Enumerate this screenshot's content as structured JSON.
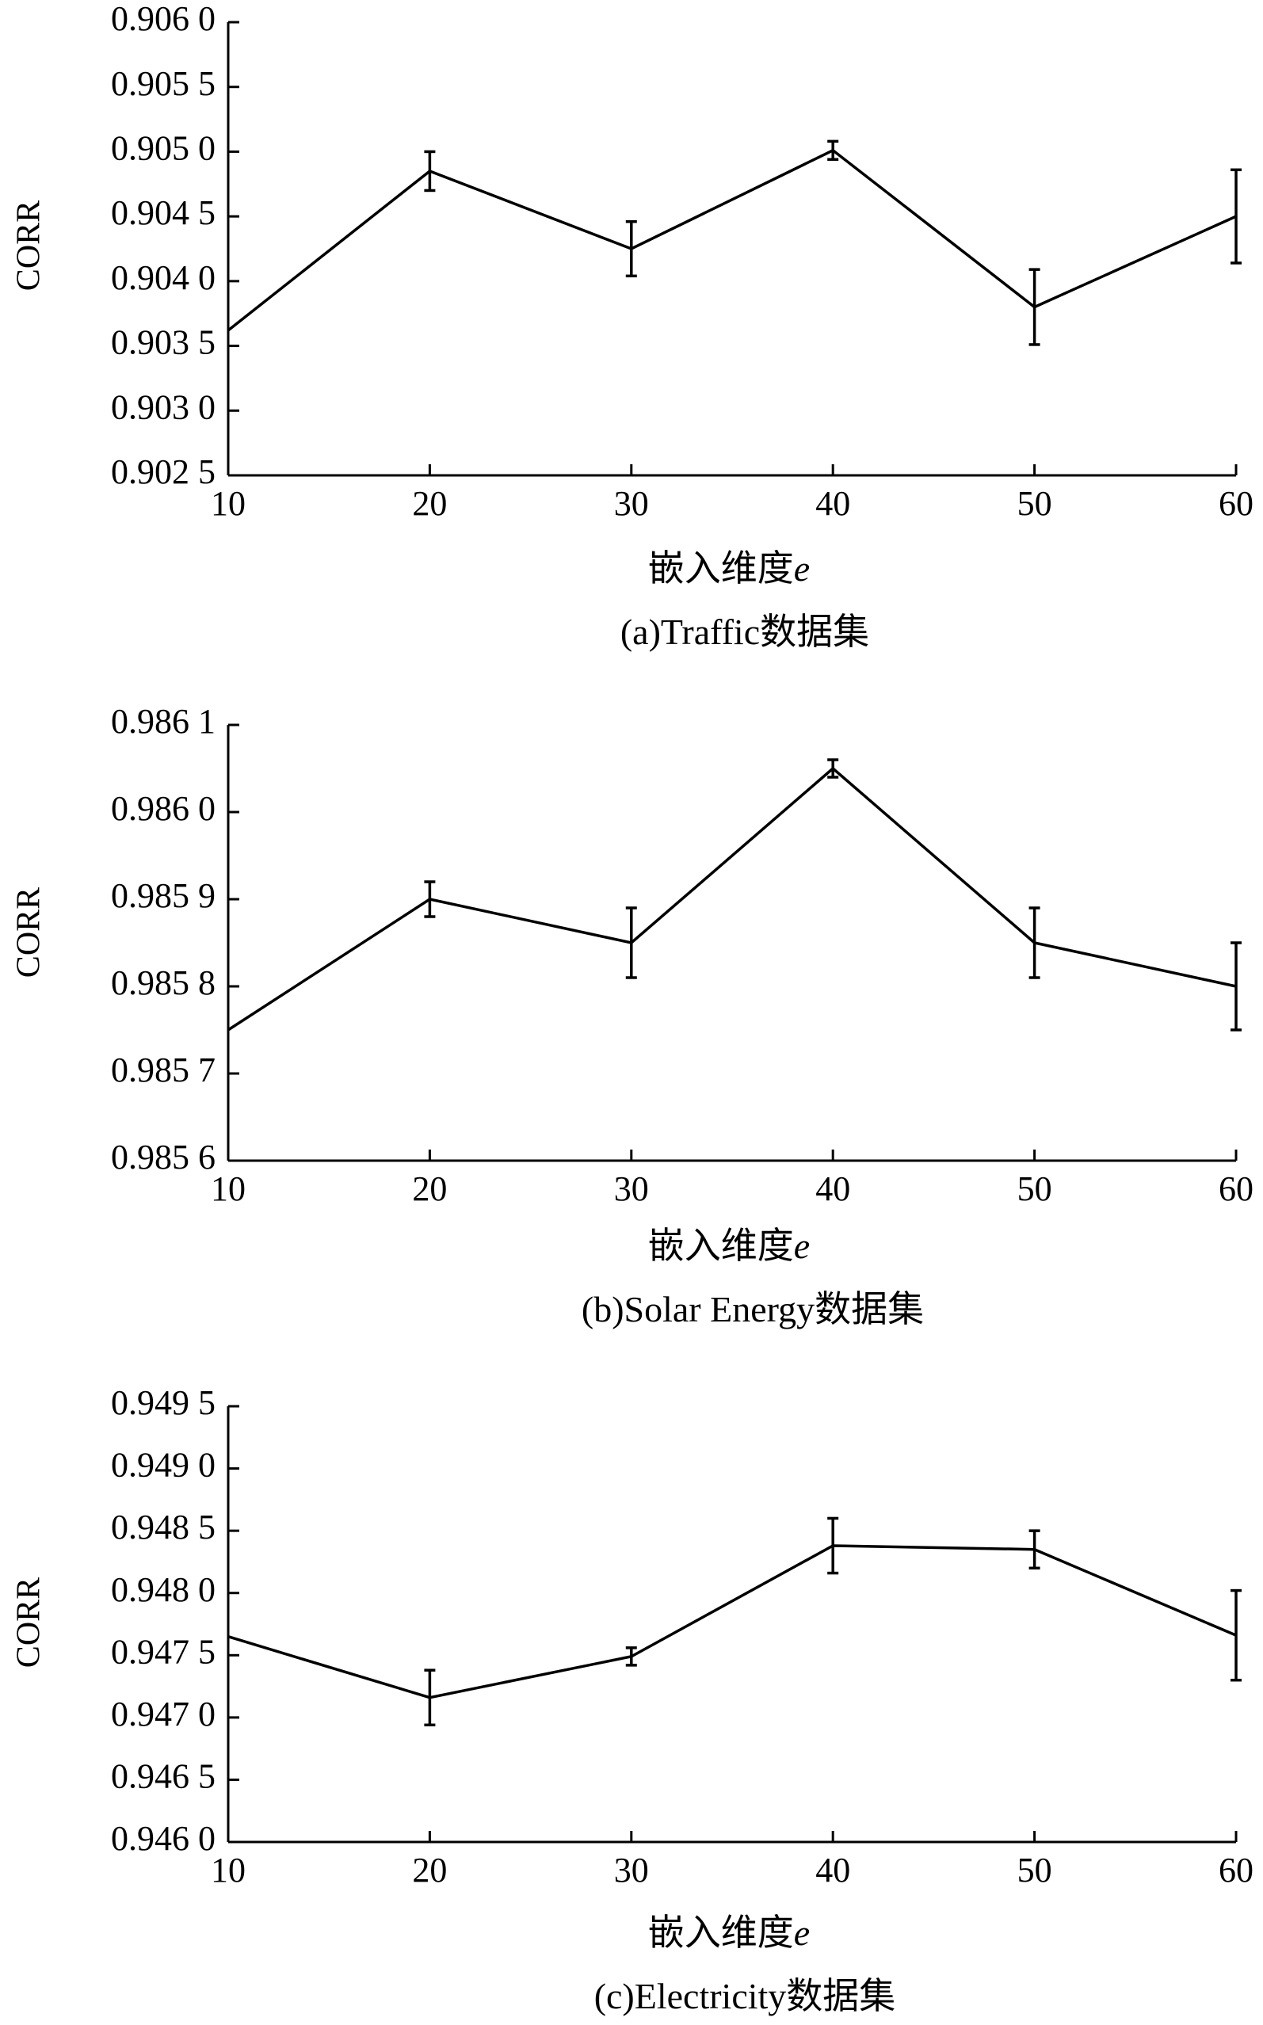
{
  "chart_data": [
    {
      "type": "line",
      "title": "",
      "caption": "(a)Traffic数据集",
      "xlabel": "嵌入维度",
      "xlabel_var": "e",
      "ylabel": "CORR",
      "x": [
        10,
        20,
        30,
        40,
        50,
        60
      ],
      "xticks": [
        "10",
        "20",
        "30",
        "40",
        "50",
        "60"
      ],
      "ylim": [
        0.9025,
        0.906
      ],
      "yticks": [
        0.9025,
        0.903,
        0.9035,
        0.904,
        0.9045,
        0.905,
        0.9055,
        0.906
      ],
      "ytick_labels": [
        "0.902 5",
        "0.903 0",
        "0.903 5",
        "0.904 0",
        "0.904 5",
        "0.905 0",
        "0.905 5",
        "0.906 0"
      ],
      "series": [
        {
          "values": [
            0.90362,
            0.90485,
            0.90425,
            0.90501,
            0.9038,
            0.9045
          ],
          "err": [
            0,
            0.00015,
            0.00021,
            7e-05,
            0.00029,
            0.00036
          ]
        }
      ],
      "grid": false
    },
    {
      "type": "line",
      "title": "",
      "caption": "(b)Solar Energy数据集",
      "xlabel": "嵌入维度",
      "xlabel_var": "e",
      "ylabel": "CORR",
      "x": [
        10,
        20,
        30,
        40,
        50,
        60
      ],
      "xticks": [
        "10",
        "20",
        "30",
        "40",
        "50",
        "60"
      ],
      "ylim": [
        0.9856,
        0.9861
      ],
      "yticks": [
        0.9856,
        0.9857,
        0.9858,
        0.9859,
        0.986,
        0.9861
      ],
      "ytick_labels": [
        "0.985 6",
        "0.985 7",
        "0.985 8",
        "0.985 9",
        "0.986 0",
        "0.986 1"
      ],
      "series": [
        {
          "values": [
            0.98575,
            0.9859,
            0.98585,
            0.98605,
            0.98585,
            0.9858
          ],
          "err": [
            0,
            2e-05,
            4e-05,
            1e-05,
            4e-05,
            5e-05
          ]
        }
      ],
      "grid": false
    },
    {
      "type": "line",
      "title": "",
      "caption": "(c)Electricity数据集",
      "xlabel": "嵌入维度",
      "xlabel_var": "e",
      "ylabel": "CORR",
      "x": [
        10,
        20,
        30,
        40,
        50,
        60
      ],
      "xticks": [
        "10",
        "20",
        "30",
        "40",
        "50",
        "60"
      ],
      "ylim": [
        0.946,
        0.9495
      ],
      "yticks": [
        0.946,
        0.9465,
        0.947,
        0.9475,
        0.948,
        0.9485,
        0.949,
        0.9495
      ],
      "ytick_labels": [
        "0.946 0",
        "0.946 5",
        "0.947 0",
        "0.947 5",
        "0.948 0",
        "0.948 5",
        "0.949 0",
        "0.949 5"
      ],
      "series": [
        {
          "values": [
            0.94765,
            0.94716,
            0.94749,
            0.94838,
            0.94835,
            0.94766
          ],
          "err": [
            0,
            0.00022,
            7e-05,
            0.00022,
            0.00015,
            0.00036
          ]
        }
      ],
      "grid": false
    }
  ]
}
